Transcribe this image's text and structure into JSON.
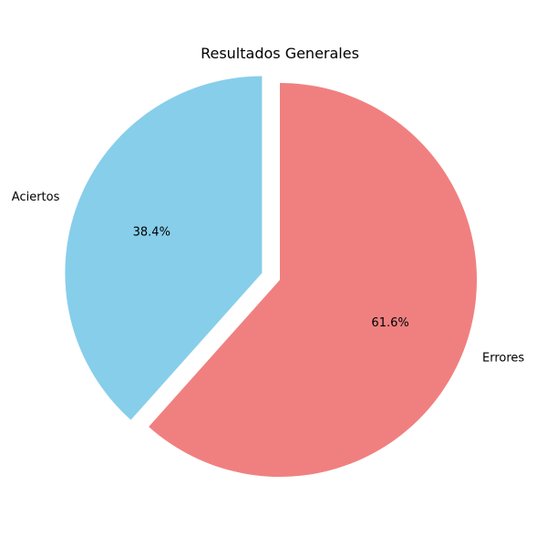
{
  "chart_data": {
    "type": "pie",
    "title": "Resultados Generales",
    "slices": [
      {
        "label": "Aciertos",
        "value": 38.4,
        "percent_label": "38.4%",
        "color": "#87CEEB",
        "explode": true
      },
      {
        "label": "Errores",
        "value": 61.6,
        "percent_label": "61.6%",
        "color": "#F08080",
        "explode": false
      }
    ],
    "start_angle_deg": 90,
    "direction": "counterclockwise",
    "legend": "none"
  }
}
